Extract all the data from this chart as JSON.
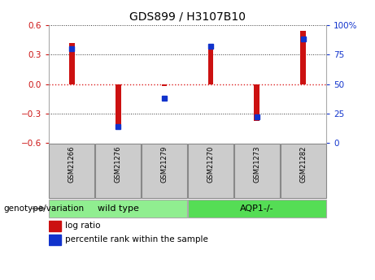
{
  "title": "GDS899 / H3107B10",
  "samples": [
    "GSM21266",
    "GSM21276",
    "GSM21279",
    "GSM21270",
    "GSM21273",
    "GSM21282"
  ],
  "log_ratio": [
    0.42,
    -0.43,
    -0.02,
    0.38,
    -0.38,
    0.54
  ],
  "percentile_rank": [
    80,
    14,
    38,
    82,
    22,
    88
  ],
  "groups": [
    {
      "label": "wild type",
      "indices": [
        0,
        1,
        2
      ],
      "color": "#90ee90"
    },
    {
      "label": "AQP1-/-",
      "indices": [
        3,
        4,
        5
      ],
      "color": "#55dd55"
    }
  ],
  "ylim_left": [
    -0.6,
    0.6
  ],
  "ylim_right": [
    0,
    100
  ],
  "yticks_left": [
    -0.6,
    -0.3,
    0.0,
    0.3,
    0.6
  ],
  "yticks_right": [
    0,
    25,
    50,
    75,
    100
  ],
  "bar_color_red": "#cc1111",
  "bar_color_blue": "#1133cc",
  "bar_width": 0.12,
  "dot_size": 35,
  "hline_color": "#dd2222",
  "grid_color": "#333333",
  "group_label_prefix": "genotype/variation",
  "legend_log_ratio": "log ratio",
  "legend_percentile": "percentile rank within the sample",
  "sample_box_color": "#cccccc",
  "sample_box_edge": "#888888"
}
